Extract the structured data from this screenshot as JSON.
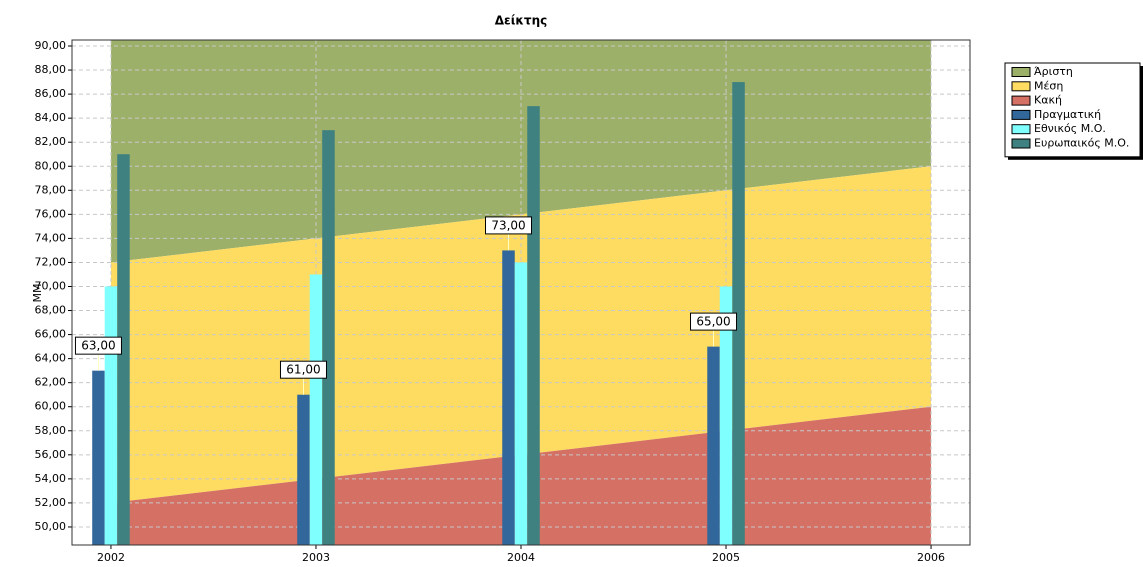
{
  "chart_data": {
    "type": "bar",
    "title": "Δείκτης",
    "y_label": "MM",
    "xlim": [
      2001.81,
      2006.19
    ],
    "xticks": [
      2002,
      2003,
      2004,
      2005,
      2006
    ],
    "ylim": [
      48.5,
      90.5
    ],
    "yticks": [
      {
        "value": 50,
        "label": "50,00"
      },
      {
        "value": 52,
        "label": "52,00"
      },
      {
        "value": 54,
        "label": "54,00"
      },
      {
        "value": 56,
        "label": "56,00"
      },
      {
        "value": 58,
        "label": "58,00"
      },
      {
        "value": 60,
        "label": "60,00"
      },
      {
        "value": 62,
        "label": "62,00"
      },
      {
        "value": 64,
        "label": "64,00"
      },
      {
        "value": 66,
        "label": "66,00"
      },
      {
        "value": 68,
        "label": "68,00"
      },
      {
        "value": 70,
        "label": "70,00"
      },
      {
        "value": 72,
        "label": "72,00"
      },
      {
        "value": 74,
        "label": "74,00"
      },
      {
        "value": 76,
        "label": "76,00"
      },
      {
        "value": 78,
        "label": "78,00"
      },
      {
        "value": 80,
        "label": "80,00"
      },
      {
        "value": 82,
        "label": "82,00"
      },
      {
        "value": 84,
        "label": "84,00"
      },
      {
        "value": 86,
        "label": "86,00"
      },
      {
        "value": 88,
        "label": "88,00"
      },
      {
        "value": 90,
        "label": "90,00"
      }
    ],
    "grid": true,
    "legend": "right",
    "series": [
      {
        "name": "Άριστη",
        "type": "area",
        "color": "#9cb06a",
        "x": [
          2002,
          2003,
          2004,
          2005,
          2006
        ],
        "values": [
          90.5,
          90.5,
          90.5,
          90.5,
          90.5
        ]
      },
      {
        "name": "Μέση",
        "type": "area",
        "color": "#fedc62",
        "x": [
          2002,
          2003,
          2004,
          2005,
          2006
        ],
        "values": [
          72,
          74,
          76,
          78,
          80
        ]
      },
      {
        "name": "Κακή",
        "type": "area",
        "color": "#d57064",
        "x": [
          2002,
          2003,
          2004,
          2005,
          2006
        ],
        "values": [
          52,
          54,
          56,
          58,
          60
        ]
      },
      {
        "name": "Πραγματική",
        "type": "bar",
        "color": "#31679a",
        "x": [
          2002,
          2003,
          2004,
          2005
        ],
        "values": [
          63,
          61,
          73,
          65
        ],
        "value_labels": [
          "63,00",
          "61,00",
          "73,00",
          "65,00"
        ]
      },
      {
        "name": "Εθνικός Μ.Ο.",
        "type": "bar",
        "color": "#80ffff",
        "x": [
          2002,
          2003,
          2004,
          2005
        ],
        "values": [
          70,
          71,
          72,
          70
        ]
      },
      {
        "name": "Ευρωπαικός Μ.Ο.",
        "type": "bar",
        "color": "#3f8080",
        "x": [
          2002,
          2003,
          2004,
          2005
        ],
        "values": [
          81,
          83,
          85,
          87
        ]
      }
    ]
  }
}
